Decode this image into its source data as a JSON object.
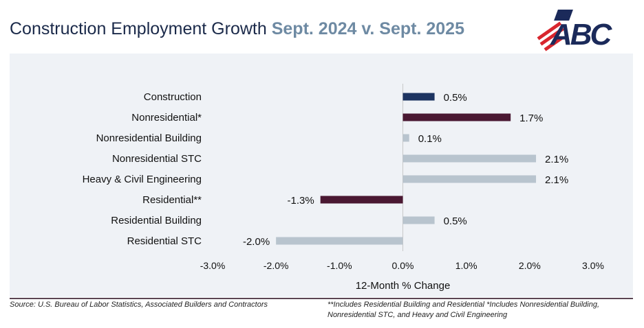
{
  "header": {
    "title": "Construction Employment Growth",
    "subtitle": "Sept. 2024 v. Sept. 2025",
    "logo_text": "ABC"
  },
  "chart_data": {
    "type": "bar",
    "orientation": "horizontal",
    "categories": [
      "Construction",
      "Nonresidential*",
      "Nonresidential Building",
      "Nonresidential STC",
      "Heavy & Civil Engineering",
      "Residential**",
      "Residential Building",
      "Residential STC"
    ],
    "values": [
      0.5,
      1.7,
      0.1,
      2.1,
      2.1,
      -1.3,
      0.5,
      -2.0
    ],
    "data_labels": [
      "0.5%",
      "1.7%",
      "0.1%",
      "2.1%",
      "2.1%",
      "-1.3%",
      "0.5%",
      "-2.0%"
    ],
    "bar_colors": [
      "#1d3461",
      "#4a1832",
      "#b8c4ce",
      "#b8c4ce",
      "#b8c4ce",
      "#4a1832",
      "#b8c4ce",
      "#b8c4ce"
    ],
    "xlabel": "12-Month % Change",
    "xlim": [
      -3,
      3
    ],
    "xticks": [
      -3,
      -2,
      -1,
      0,
      1,
      2,
      3
    ],
    "xtick_labels": [
      "-3.0%",
      "-2.0%",
      "-1.0%",
      "0.0%",
      "1.0%",
      "2.0%",
      "3.0%"
    ],
    "grid": false
  },
  "footer": {
    "source": "Source: U.S. Bureau of Labor Statistics, Associated Builders and Contractors",
    "note": "**Includes Residential Building and Residential *Includes Nonresidential Building, Nonresidential STC, and Heavy and Civil Engineering"
  }
}
